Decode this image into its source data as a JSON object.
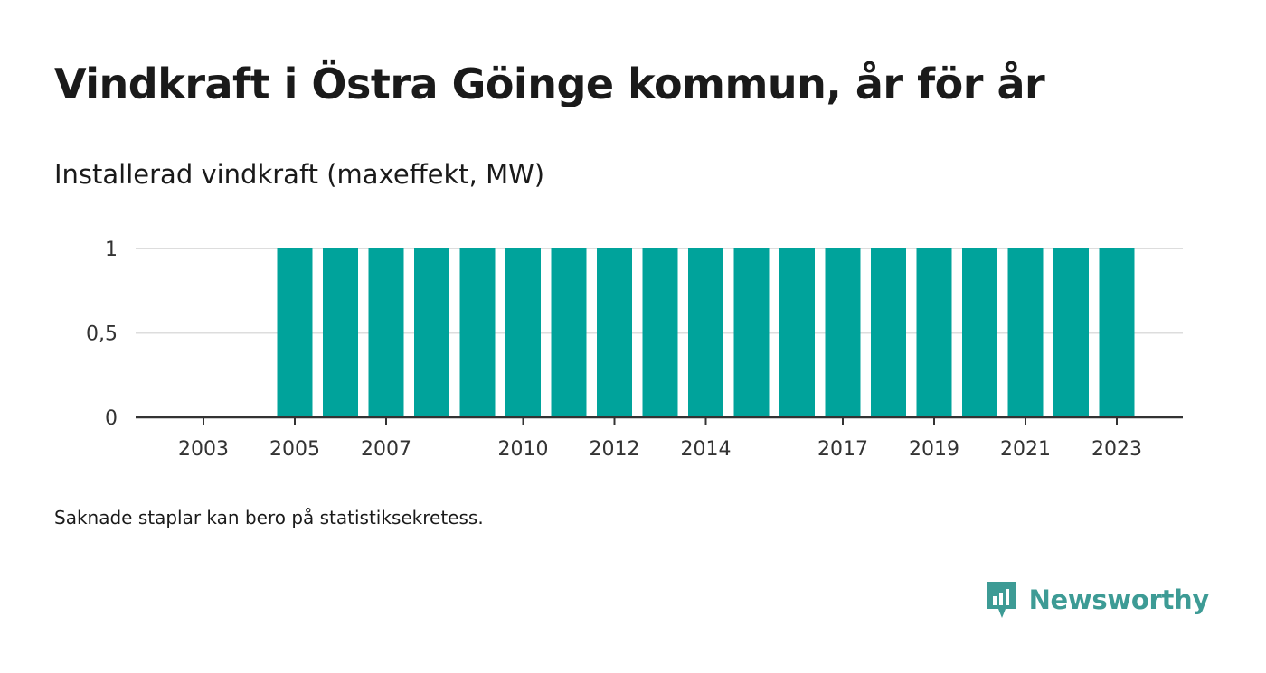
{
  "header": {
    "title": "Vindkraft i Östra Göinge kommun, år för år",
    "subtitle": "Installerad vindkraft (maxeffekt, MW)"
  },
  "footer": {
    "note": "Saknade staplar kan bero på statistiksekretess.",
    "brand": "Newsworthy"
  },
  "colors": {
    "bar": "#00a39b",
    "brand": "#3d9b95",
    "grid": "#dddddd",
    "axis": "#333333"
  },
  "chart_data": {
    "type": "bar",
    "title": "Installerad vindkraft (maxeffekt, MW)",
    "categories": [
      2002,
      2003,
      2004,
      2005,
      2006,
      2007,
      2008,
      2009,
      2010,
      2011,
      2012,
      2013,
      2014,
      2015,
      2016,
      2017,
      2018,
      2019,
      2020,
      2021,
      2022,
      2023
    ],
    "values": [
      null,
      null,
      null,
      1,
      1,
      1,
      1,
      1,
      1,
      1,
      1,
      1,
      1,
      1,
      1,
      1,
      1,
      1,
      1,
      1,
      1,
      1
    ],
    "x_tick_labels": [
      "2003",
      "2005",
      "2007",
      "2010",
      "2012",
      "2014",
      "2017",
      "2019",
      "2021",
      "2023"
    ],
    "y_ticks": [
      0,
      0.5,
      1
    ],
    "y_tick_labels": [
      "0",
      "0,5",
      "1"
    ],
    "ylim": [
      0,
      1
    ],
    "grid": true,
    "legend": "none"
  }
}
